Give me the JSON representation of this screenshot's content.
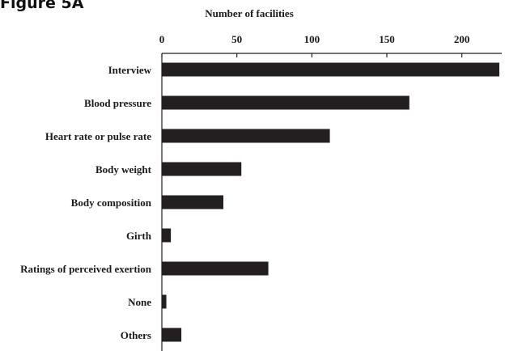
{
  "figure_label": "Figure 5A",
  "chart_data": {
    "type": "bar",
    "orientation": "horizontal",
    "title": "",
    "xlabel": "Number of facilities",
    "ylabel": "",
    "xlim": [
      0,
      225
    ],
    "xticks": [
      0,
      50,
      100,
      150,
      200
    ],
    "x_axis_position": "top",
    "grid": false,
    "bar_color": "#231f20",
    "categories": [
      "Interview",
      "Blood pressure",
      "Heart rate or pulse rate",
      "Body weight",
      "Body composition",
      "Girth",
      "Ratings of perceived exertion",
      "None",
      "Others"
    ],
    "values": [
      225,
      165,
      112,
      53,
      41,
      6,
      71,
      3,
      13
    ]
  }
}
